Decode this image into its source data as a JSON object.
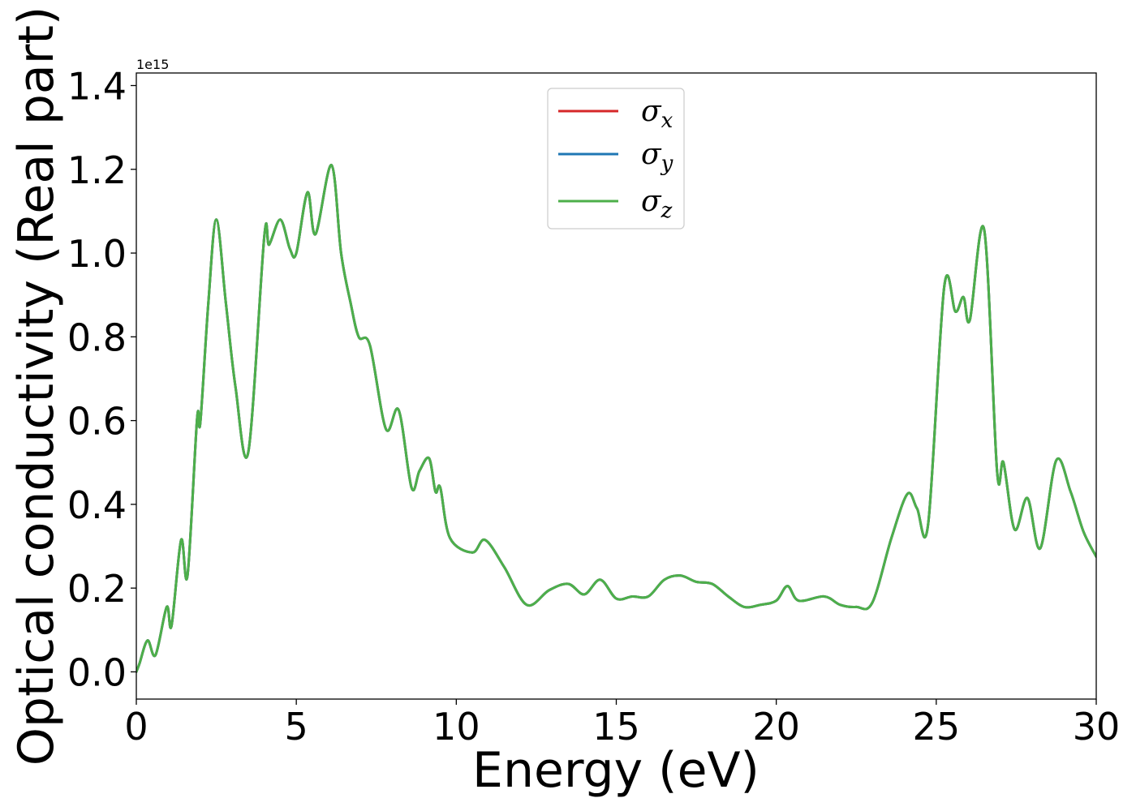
{
  "chart_data": {
    "type": "line",
    "xlabel": "Energy (eV)",
    "ylabel": "Optical conductivity (Real part)",
    "y_offset_label": "1e15",
    "xlim": [
      0,
      30
    ],
    "ylim": [
      -0.065,
      1.43
    ],
    "x_ticks": [
      0,
      5,
      10,
      15,
      20,
      25,
      30
    ],
    "x_tick_labels": [
      "0",
      "5",
      "10",
      "15",
      "20",
      "25",
      "30"
    ],
    "y_ticks": [
      0.0,
      0.2,
      0.4,
      0.6,
      0.8,
      1.0,
      1.2,
      1.4
    ],
    "y_tick_labels": [
      "0.0",
      "0.2",
      "0.4",
      "0.6",
      "0.8",
      "1.0",
      "1.2",
      "1.4"
    ],
    "grid": false,
    "legend_position": "top-center",
    "legend": [
      {
        "symbol": "σ",
        "subscript": "x",
        "color": "#d62728"
      },
      {
        "symbol": "σ",
        "subscript": "y",
        "color": "#1f77b4"
      },
      {
        "symbol": "σ",
        "subscript": "z",
        "color": "#4daf4a"
      }
    ],
    "x": [
      0,
      0.1,
      0.35,
      0.6,
      0.95,
      1.1,
      1.4,
      1.6,
      1.9,
      2.0,
      2.25,
      2.5,
      2.8,
      3.1,
      3.5,
      4.0,
      4.15,
      4.5,
      4.8,
      5.0,
      5.35,
      5.6,
      6.1,
      6.4,
      6.7,
      6.95,
      7.3,
      7.8,
      8.2,
      8.6,
      8.85,
      9.15,
      9.35,
      9.5,
      9.8,
      10.5,
      10.9,
      11.5,
      12.2,
      12.9,
      13.5,
      14.0,
      14.5,
      15.0,
      15.5,
      16.0,
      16.5,
      17.0,
      17.5,
      18.0,
      18.5,
      19.0,
      19.5,
      20.0,
      20.35,
      20.7,
      21.5,
      22.0,
      22.5,
      23.0,
      23.6,
      24.1,
      24.4,
      24.75,
      25.25,
      25.6,
      25.85,
      26.05,
      26.5,
      26.9,
      27.1,
      27.45,
      27.85,
      28.25,
      28.75,
      29.2,
      29.6,
      30.0
    ],
    "series": [
      {
        "name": "σx",
        "color": "#d62728",
        "values": [
          0.0,
          0.02,
          0.075,
          0.04,
          0.155,
          0.11,
          0.315,
          0.23,
          0.605,
          0.595,
          0.88,
          1.08,
          0.88,
          0.68,
          0.525,
          1.04,
          1.02,
          1.08,
          1.01,
          1.0,
          1.145,
          1.045,
          1.21,
          1.0,
          0.88,
          0.8,
          0.78,
          0.58,
          0.625,
          0.44,
          0.48,
          0.51,
          0.43,
          0.44,
          0.32,
          0.285,
          0.315,
          0.25,
          0.16,
          0.195,
          0.21,
          0.185,
          0.22,
          0.175,
          0.18,
          0.18,
          0.22,
          0.23,
          0.215,
          0.21,
          0.18,
          0.155,
          0.16,
          0.17,
          0.205,
          0.17,
          0.18,
          0.16,
          0.155,
          0.165,
          0.32,
          0.425,
          0.39,
          0.355,
          0.92,
          0.86,
          0.895,
          0.84,
          1.055,
          0.48,
          0.5,
          0.34,
          0.415,
          0.295,
          0.505,
          0.43,
          0.335,
          0.275
        ]
      },
      {
        "name": "σy",
        "color": "#1f77b4",
        "values": [
          0.0,
          0.02,
          0.075,
          0.04,
          0.155,
          0.11,
          0.315,
          0.23,
          0.605,
          0.595,
          0.88,
          1.08,
          0.88,
          0.68,
          0.525,
          1.04,
          1.02,
          1.08,
          1.01,
          1.0,
          1.145,
          1.045,
          1.21,
          1.0,
          0.88,
          0.8,
          0.78,
          0.58,
          0.625,
          0.44,
          0.48,
          0.51,
          0.43,
          0.44,
          0.32,
          0.285,
          0.315,
          0.25,
          0.16,
          0.195,
          0.21,
          0.185,
          0.22,
          0.175,
          0.18,
          0.18,
          0.22,
          0.23,
          0.215,
          0.21,
          0.18,
          0.155,
          0.16,
          0.17,
          0.205,
          0.17,
          0.18,
          0.16,
          0.155,
          0.165,
          0.32,
          0.425,
          0.39,
          0.355,
          0.92,
          0.86,
          0.895,
          0.84,
          1.055,
          0.48,
          0.5,
          0.34,
          0.415,
          0.295,
          0.505,
          0.43,
          0.335,
          0.275
        ]
      },
      {
        "name": "σz",
        "color": "#4daf4a",
        "values": [
          0.0,
          0.02,
          0.075,
          0.04,
          0.155,
          0.11,
          0.315,
          0.23,
          0.605,
          0.595,
          0.88,
          1.08,
          0.88,
          0.68,
          0.525,
          1.04,
          1.02,
          1.08,
          1.01,
          1.0,
          1.145,
          1.045,
          1.21,
          1.0,
          0.88,
          0.8,
          0.78,
          0.58,
          0.625,
          0.44,
          0.48,
          0.51,
          0.43,
          0.44,
          0.32,
          0.285,
          0.315,
          0.25,
          0.16,
          0.195,
          0.21,
          0.185,
          0.22,
          0.175,
          0.18,
          0.18,
          0.22,
          0.23,
          0.215,
          0.21,
          0.18,
          0.155,
          0.16,
          0.17,
          0.205,
          0.17,
          0.18,
          0.16,
          0.155,
          0.165,
          0.32,
          0.425,
          0.39,
          0.355,
          0.92,
          0.86,
          0.895,
          0.84,
          1.055,
          0.48,
          0.5,
          0.34,
          0.415,
          0.295,
          0.505,
          0.43,
          0.335,
          0.275
        ]
      }
    ]
  }
}
